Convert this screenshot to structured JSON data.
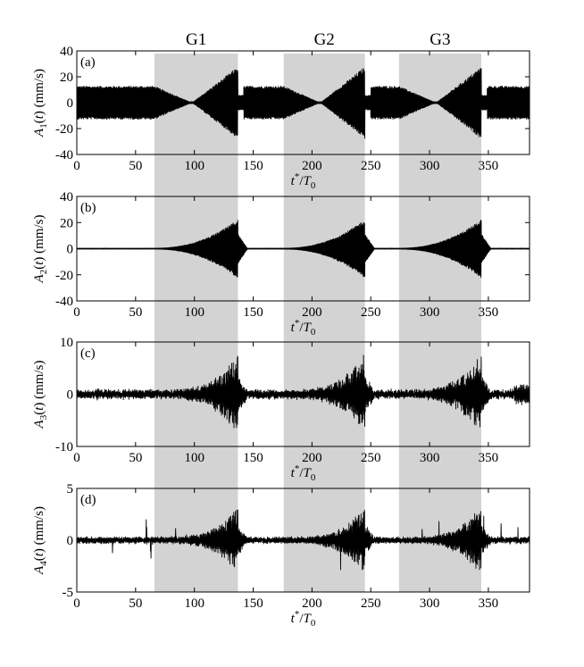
{
  "chart_data": {
    "type": "line",
    "x_range": [
      0,
      385
    ],
    "x_ticks": [
      0,
      50,
      100,
      150,
      200,
      250,
      300,
      350
    ],
    "x_label": "t*/T0",
    "shaded_regions": [
      {
        "label": "G1",
        "start": 66,
        "end": 137
      },
      {
        "label": "G2",
        "start": 176,
        "end": 245
      },
      {
        "label": "G3",
        "start": 274,
        "end": 344
      }
    ],
    "panels": [
      {
        "tag": "(a)",
        "ylabel": "A1(t) (mm/s)",
        "ylim": [
          -40,
          40
        ],
        "yticks": [
          40,
          20,
          0,
          -20,
          -40
        ],
        "peak_amplitude": 28,
        "background_amplitude": 13
      },
      {
        "tag": "(b)",
        "ylabel": "A2(t) (mm/s)",
        "ylim": [
          -40,
          40
        ],
        "yticks": [
          40,
          20,
          0,
          -20,
          -40
        ],
        "peak_amplitude": 22,
        "background_amplitude": 0.6
      },
      {
        "tag": "(c)",
        "ylabel": "A3(t) (mm/s)",
        "ylim": [
          -10,
          10
        ],
        "yticks": [
          10,
          0,
          -10
        ],
        "peak_amplitude": 7,
        "background_amplitude": 0.8
      },
      {
        "tag": "(d)",
        "ylabel": "A4(t) (mm/s)",
        "ylim": [
          -5,
          5
        ],
        "yticks": [
          5,
          0,
          -5
        ],
        "peak_amplitude": 3,
        "background_amplitude": 0.3
      }
    ]
  }
}
